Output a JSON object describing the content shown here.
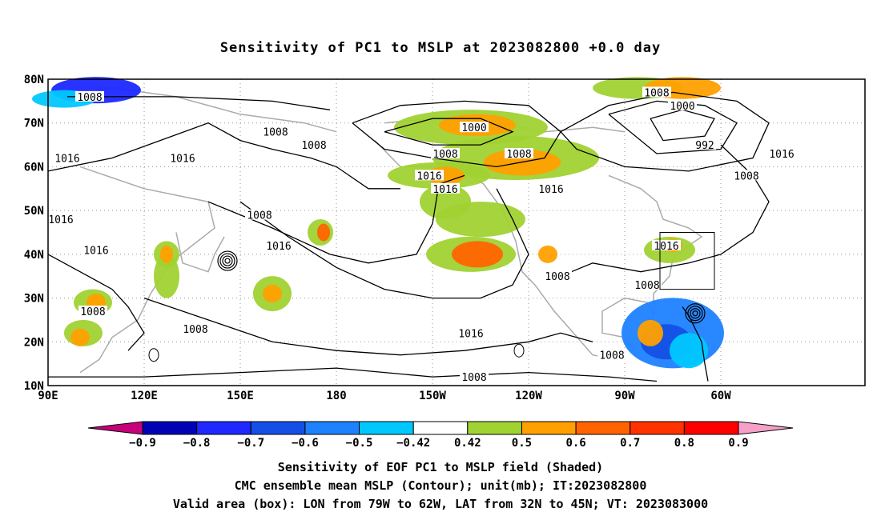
{
  "title": "Sensitivity of PC1 to MSLP at 2023082800 +0.0 day",
  "map": {
    "lat_labels": [
      "80N",
      "70N",
      "60N",
      "50N",
      "40N",
      "30N",
      "20N",
      "10N"
    ],
    "lon_labels": [
      "90E",
      "120E",
      "150E",
      "180",
      "150W",
      "120W",
      "90W",
      "60W"
    ],
    "valid_box": {
      "lon_from": -79,
      "lon_to": -62,
      "lat_from": 32,
      "lat_to": 45
    },
    "contour_labels": [
      {
        "text": "1008",
        "lon": 103,
        "lat": 76
      },
      {
        "text": "1008",
        "lon": 161,
        "lat": 68
      },
      {
        "text": "1008",
        "lon": 173,
        "lat": 65
      },
      {
        "text": "1016",
        "lon": 96,
        "lat": 62
      },
      {
        "text": "1016",
        "lon": 132,
        "lat": 62
      },
      {
        "text": "1000",
        "lon": -137,
        "lat": 69
      },
      {
        "text": "1008",
        "lon": -146,
        "lat": 63
      },
      {
        "text": "1008",
        "lon": -123,
        "lat": 63
      },
      {
        "text": "1016",
        "lon": -151,
        "lat": 58
      },
      {
        "text": "1016",
        "lon": -146,
        "lat": 55
      },
      {
        "text": "1016",
        "lon": -113,
        "lat": 55
      },
      {
        "text": "1008",
        "lon": -80,
        "lat": 77
      },
      {
        "text": "1000",
        "lon": -72,
        "lat": 74
      },
      {
        "text": "992",
        "lon": -65,
        "lat": 65
      },
      {
        "text": "1016",
        "lon": -41,
        "lat": 63
      },
      {
        "text": "1008",
        "lon": -52,
        "lat": 58
      },
      {
        "text": "1016",
        "lon": 94,
        "lat": 48
      },
      {
        "text": "1016",
        "lon": 105,
        "lat": 41
      },
      {
        "text": "1008",
        "lon": 156,
        "lat": 49
      },
      {
        "text": "1016",
        "lon": 162,
        "lat": 42
      },
      {
        "text": "1008",
        "lon": 104,
        "lat": 27
      },
      {
        "text": "1008",
        "lon": 136,
        "lat": 23
      },
      {
        "text": "1008",
        "lon": -111,
        "lat": 35
      },
      {
        "text": "1008",
        "lon": -83,
        "lat": 33
      },
      {
        "text": "1016",
        "lon": -77,
        "lat": 42
      },
      {
        "text": "1016",
        "lon": -138,
        "lat": 22
      },
      {
        "text": "1008",
        "lon": -137,
        "lat": 12
      },
      {
        "text": "1008",
        "lon": -94,
        "lat": 17
      }
    ]
  },
  "colorbar": {
    "labels": [
      "-0.9",
      "-0.8",
      "-0.7",
      "-0.6",
      "-0.5",
      "-0.42",
      "0.42",
      "0.5",
      "0.6",
      "0.7",
      "0.8",
      "0.9"
    ],
    "colors": [
      "#c8007a",
      "#0000b4",
      "#1e28ff",
      "#1450e6",
      "#1e82ff",
      "#00c8ff",
      "#ffffff",
      "#a0d232",
      "#ffa000",
      "#ff6400",
      "#ff3200",
      "#ff0000",
      "#f5a0c8"
    ]
  },
  "footer": {
    "line1": "Sensitivity of EOF PC1 to MSLP field (Shaded)",
    "line2": "CMC ensemble mean MSLP (Contour); unit(mb); IT:2023082800",
    "line3": "Valid area (box): LON from 79W to 62W, LAT from 32N to 45N; VT: 2023083000"
  }
}
